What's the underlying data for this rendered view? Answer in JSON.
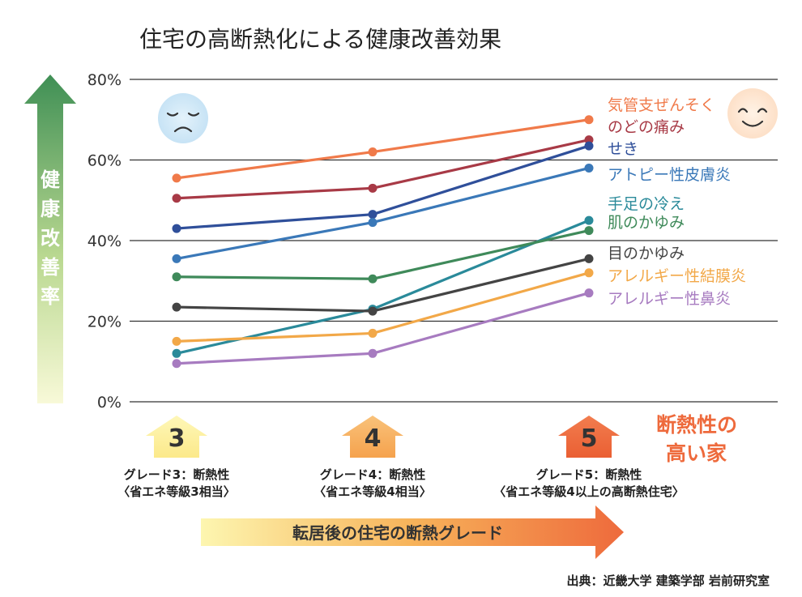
{
  "chart_data": {
    "type": "line",
    "title": "住宅の高断熱化による健康改善効果",
    "ylabel": "健康改善率",
    "xlabel": "転居後の住宅の断熱グレード",
    "ylim": [
      0,
      80
    ],
    "yticks": [
      "0%",
      "20%",
      "40%",
      "60%",
      "80%"
    ],
    "ytick_values": [
      0,
      20,
      40,
      60,
      80
    ],
    "grid": true,
    "legend_placement": "right",
    "categories": [
      "3",
      "4",
      "5"
    ],
    "series": [
      {
        "name": "気管支ぜんそく",
        "color": "#f07a4a",
        "values": [
          55.5,
          62,
          70
        ]
      },
      {
        "name": "のどの痛み",
        "color": "#a83a46",
        "values": [
          50.5,
          53,
          65
        ]
      },
      {
        "name": "せき",
        "color": "#2f4f9a",
        "values": [
          43,
          46.5,
          63.5
        ]
      },
      {
        "name": "アトピー性皮膚炎",
        "color": "#3a78b8",
        "values": [
          35.5,
          44.5,
          58
        ]
      },
      {
        "name": "手足の冷え",
        "color": "#2a8a9a",
        "values": [
          12,
          23,
          45
        ]
      },
      {
        "name": "肌のかゆみ",
        "color": "#3f8a5a",
        "values": [
          31,
          30.5,
          42.5
        ]
      },
      {
        "name": "目のかゆみ",
        "color": "#444444",
        "values": [
          23.5,
          22.5,
          35.5
        ]
      },
      {
        "name": "アレルギー性結膜炎",
        "color": "#f2a848",
        "values": [
          15,
          17,
          32
        ]
      },
      {
        "name": "アレルギー性鼻炎",
        "color": "#a77bc0",
        "values": [
          9.5,
          12,
          27
        ]
      }
    ]
  },
  "grades": [
    {
      "number": "3",
      "line1": "グレード3：断熱性",
      "line2": "〈省エネ等級3相当〉"
    },
    {
      "number": "4",
      "line1": "グレード4：断熱性",
      "line2": "〈省エネ等級4相当〉"
    },
    {
      "number": "5",
      "line1": "グレード5：断熱性",
      "line2": "〈省エネ等級4以上の高断熱住宅〉"
    }
  ],
  "high_insulation_label": [
    "断熱性の",
    "高い家"
  ],
  "source": "出典：近畿大学 建築学部 岩前研究室",
  "icons": {
    "sad": "sad-face-icon",
    "happy": "happy-face-icon"
  },
  "colors": {
    "grade_light": "#fdf4a8",
    "grade_mid": "#f7a854",
    "grade_strong": "#ee6a3c",
    "accent": "#ee6a3c",
    "ylabel_arrow_top": "#3f8f55"
  }
}
